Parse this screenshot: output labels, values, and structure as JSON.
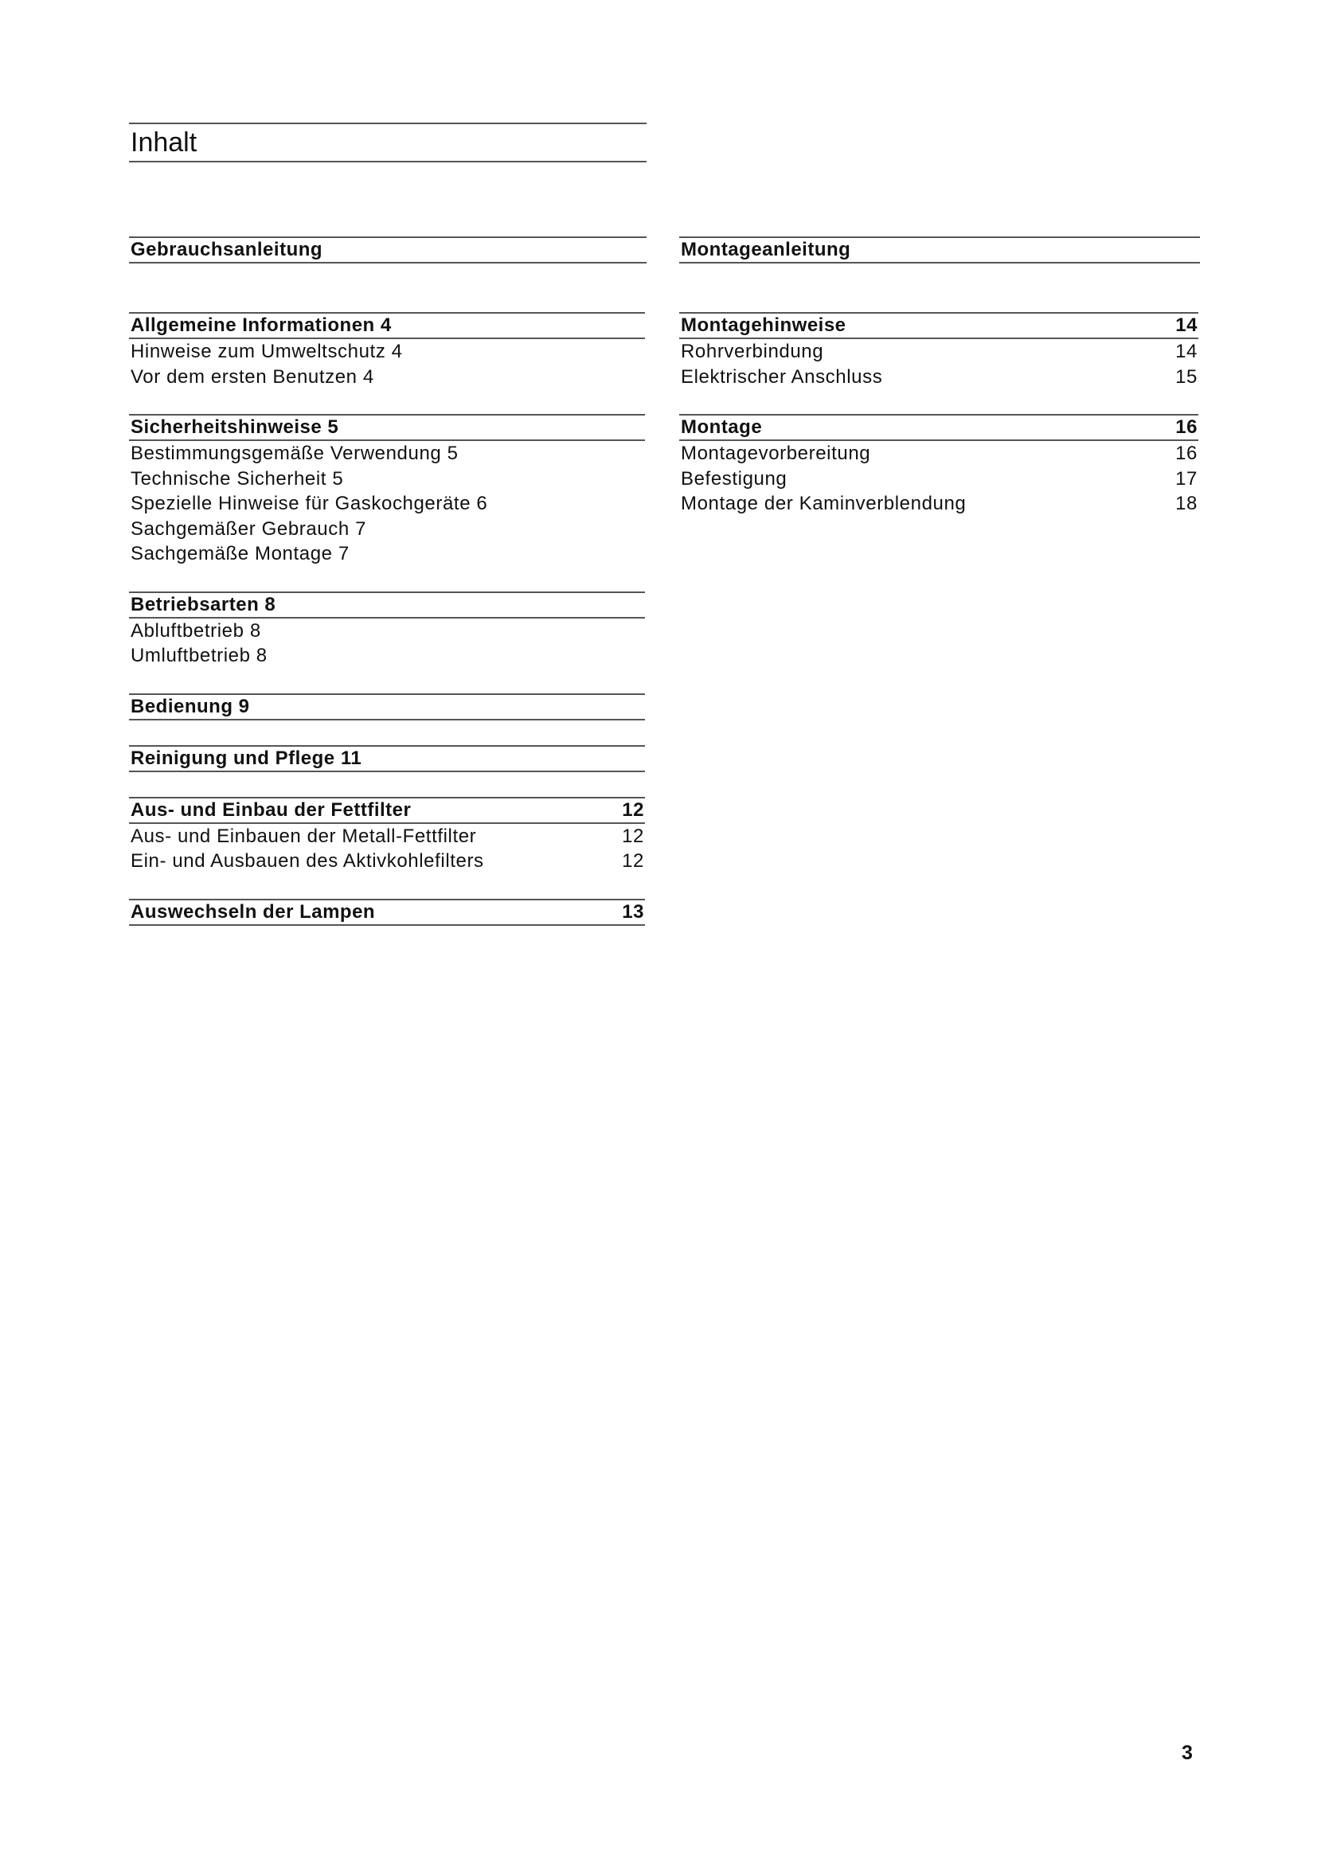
{
  "title": "Inhalt",
  "left": {
    "part": "Gebrauchsanleitung",
    "sections": [
      {
        "title": "Allgemeine Informationen 4",
        "page": "",
        "items": [
          {
            "title": "Hinweise zum Umweltschutz 4",
            "page": ""
          },
          {
            "title": "Vor dem ersten Benutzen 4",
            "page": ""
          }
        ]
      },
      {
        "title": "Sicherheitshinweise 5",
        "page": "",
        "items": [
          {
            "title": "Bestimmungsgemäße Verwendung 5",
            "page": ""
          },
          {
            "title": "Technische Sicherheit 5",
            "page": ""
          },
          {
            "title": "Spezielle Hinweise für Gaskochgeräte 6",
            "page": ""
          },
          {
            "title": "Sachgemäßer Gebrauch 7",
            "page": ""
          },
          {
            "title": "Sachgemäße Montage 7",
            "page": ""
          }
        ]
      },
      {
        "title": "Betriebsarten 8",
        "page": "",
        "items": [
          {
            "title": "Abluftbetrieb 8",
            "page": ""
          },
          {
            "title": "Umluftbetrieb 8",
            "page": ""
          }
        ]
      },
      {
        "title": "Bedienung 9",
        "page": "",
        "items": []
      },
      {
        "title": "Reinigung und Pflege 11",
        "page": "",
        "items": []
      },
      {
        "title": "Aus- und Einbau der Fettfilter",
        "page": "12",
        "items": [
          {
            "title": "Aus- und Einbauen der Metall-Fettfilter",
            "page": "12"
          },
          {
            "title": "Ein- und Ausbauen des Aktivkohlefilters",
            "page": "12"
          }
        ]
      },
      {
        "title": "Auswechseln der Lampen",
        "page": "13",
        "items": []
      }
    ]
  },
  "right": {
    "part": "Montageanleitung",
    "sections": [
      {
        "title": "Montagehinweise",
        "page": "14",
        "items": [
          {
            "title": "Rohrverbindung",
            "page": "14"
          },
          {
            "title": "Elektrischer Anschluss",
            "page": "15"
          }
        ]
      },
      {
        "title": "Montage",
        "page": "16",
        "items": [
          {
            "title": "Montagevorbereitung",
            "page": "16"
          },
          {
            "title": "Befestigung",
            "page": "17"
          },
          {
            "title": "Montage der Kaminverblendung",
            "page": "18"
          }
        ]
      }
    ]
  },
  "page_number": "3"
}
